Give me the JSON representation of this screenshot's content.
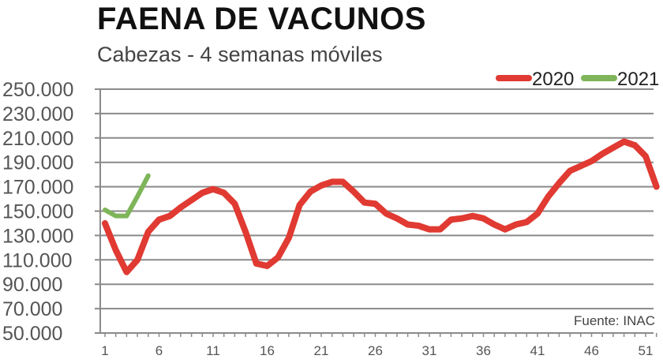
{
  "chart_data": {
    "type": "line",
    "title": "FAENA DE VACUNOS",
    "subtitle": "Cabezas - 4 semanas móviles",
    "source": "Fuente: INAC",
    "xlabel": "",
    "ylabel": "",
    "ylim": [
      50000,
      250000
    ],
    "xlim": [
      1,
      52
    ],
    "yticks": [
      "50.000",
      "70.000",
      "90.000",
      "110.000",
      "130.000",
      "150.000",
      "170.000",
      "190.000",
      "210.000",
      "230.000",
      "250.000"
    ],
    "ytick_values": [
      50000,
      70000,
      90000,
      110000,
      130000,
      150000,
      170000,
      190000,
      210000,
      230000,
      250000
    ],
    "xticks": [
      "1",
      "6",
      "11",
      "16",
      "21",
      "26",
      "31",
      "36",
      "41",
      "46",
      "51"
    ],
    "xtick_values": [
      1,
      6,
      11,
      16,
      21,
      26,
      31,
      36,
      41,
      46,
      51
    ],
    "grid": true,
    "legend": "top-right",
    "series": [
      {
        "name": "2020",
        "color": "#e03a32",
        "x": [
          1,
          2,
          3,
          4,
          5,
          6,
          7,
          8,
          9,
          10,
          11,
          12,
          13,
          14,
          15,
          16,
          17,
          18,
          19,
          20,
          21,
          22,
          23,
          24,
          25,
          26,
          27,
          28,
          29,
          30,
          31,
          32,
          33,
          34,
          35,
          36,
          37,
          38,
          39,
          40,
          41,
          42,
          43,
          44,
          45,
          46,
          47,
          48,
          49,
          50,
          51,
          52
        ],
        "values": [
          140000,
          118000,
          100000,
          110000,
          133000,
          143000,
          146000,
          153000,
          159000,
          165000,
          168000,
          165000,
          156000,
          133000,
          107000,
          105000,
          112000,
          128000,
          155000,
          166000,
          171000,
          174000,
          174000,
          166000,
          157000,
          156000,
          148000,
          144000,
          139000,
          138000,
          135000,
          135000,
          143000,
          144000,
          146000,
          144000,
          139000,
          135000,
          139000,
          141000,
          148000,
          162000,
          173000,
          183000,
          187000,
          191000,
          197000,
          202000,
          207000,
          204000,
          195000,
          170000
        ]
      },
      {
        "name": "2021",
        "color": "#7fb55a",
        "x": [
          1,
          2,
          3,
          4,
          5
        ],
        "values": [
          151000,
          146000,
          146000,
          162000,
          179000
        ]
      }
    ]
  }
}
